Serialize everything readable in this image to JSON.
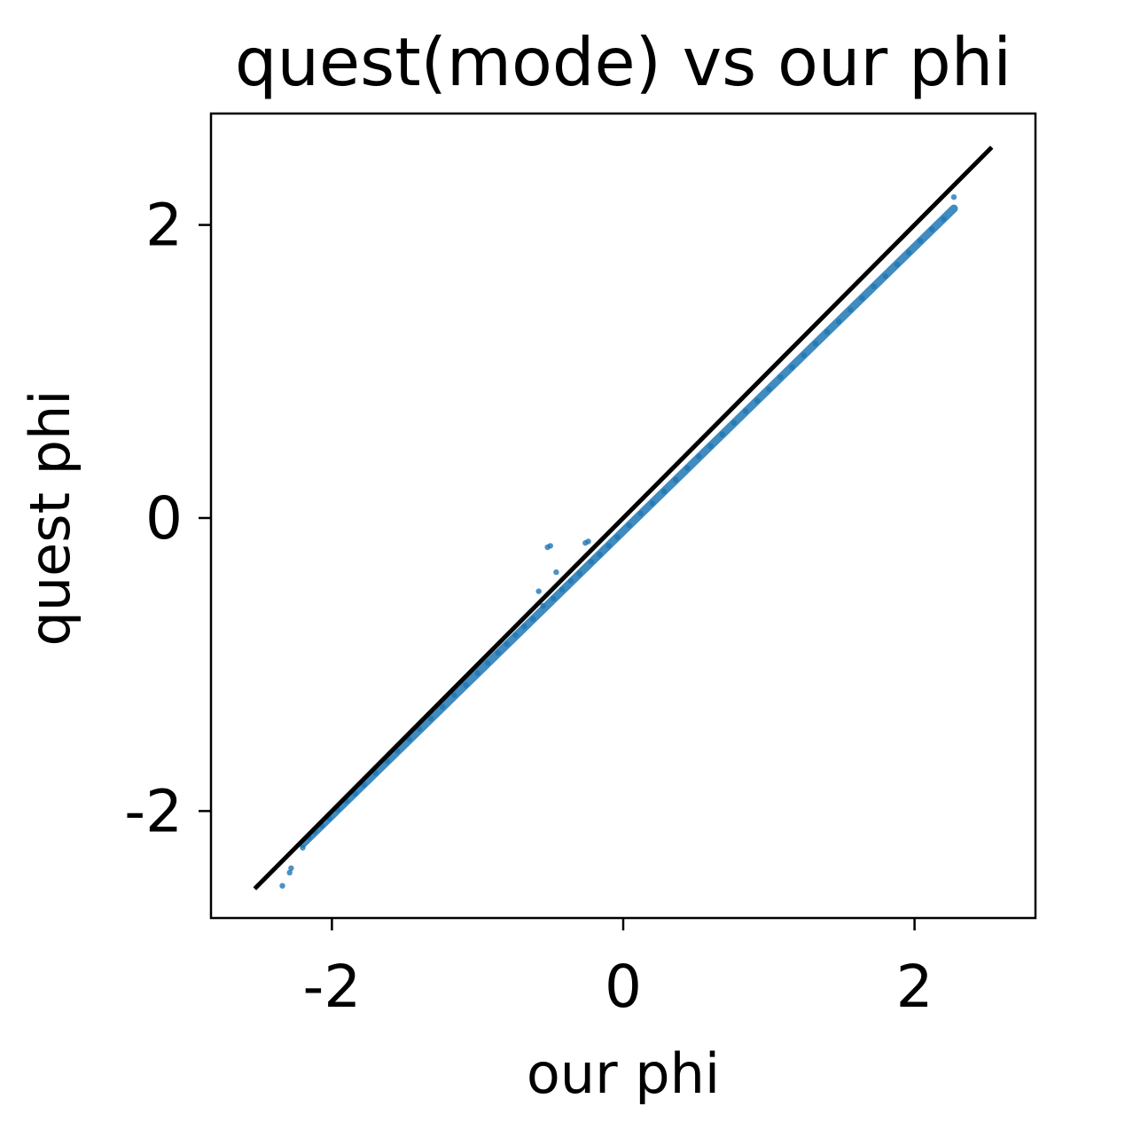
{
  "chart_data": {
    "type": "scatter",
    "title": "quest(mode) vs our phi",
    "xlabel": "our phi",
    "ylabel": "quest phi",
    "xlim": [
      -2.83,
      2.83
    ],
    "ylim": [
      -2.73,
      2.76
    ],
    "xticks": [
      {
        "value": -2,
        "label": "-2"
      },
      {
        "value": 0,
        "label": "0"
      },
      {
        "value": 2,
        "label": "2"
      }
    ],
    "yticks": [
      {
        "value": -2,
        "label": "-2"
      },
      {
        "value": 0,
        "label": "0"
      },
      {
        "value": 2,
        "label": "2"
      }
    ],
    "grid": false,
    "series": [
      {
        "kind": "scatter",
        "color": "#1f77b4",
        "relation": "y ≈ 0.97·x − 0.09",
        "x_range": [
          -2.2,
          2.27
        ],
        "points": [
          [
            -2.34,
            -2.51
          ],
          [
            -2.28,
            -2.39
          ],
          [
            -2.29,
            -2.42
          ],
          [
            -2.2,
            -2.25
          ],
          [
            -2.16,
            -2.18
          ],
          [
            -2.12,
            -2.14
          ],
          [
            -2.07,
            -2.1
          ],
          [
            -2.02,
            -2.05
          ],
          [
            -1.96,
            -1.99
          ],
          [
            -1.9,
            -1.93
          ],
          [
            -1.84,
            -1.88
          ],
          [
            -1.78,
            -1.82
          ],
          [
            -1.7,
            -1.74
          ],
          [
            -1.62,
            -1.66
          ],
          [
            -1.55,
            -1.59
          ],
          [
            -1.47,
            -1.51
          ],
          [
            -1.4,
            -1.44
          ],
          [
            -1.32,
            -1.37
          ],
          [
            -1.24,
            -1.29
          ],
          [
            -1.16,
            -1.21
          ],
          [
            -1.08,
            -1.14
          ],
          [
            -1.0,
            -1.06
          ],
          [
            -0.93,
            -0.99
          ],
          [
            -0.86,
            -0.92
          ],
          [
            -0.8,
            -0.86
          ],
          [
            -0.74,
            -0.8
          ],
          [
            -0.68,
            -0.74
          ],
          [
            -0.62,
            -0.69
          ],
          [
            -0.58,
            -0.5
          ],
          [
            -0.52,
            -0.2
          ],
          [
            -0.5,
            -0.19
          ],
          [
            -0.55,
            -0.6
          ],
          [
            -0.48,
            -0.55
          ],
          [
            -0.46,
            -0.37
          ],
          [
            -0.42,
            -0.49
          ],
          [
            -0.36,
            -0.43
          ],
          [
            -0.3,
            -0.38
          ],
          [
            -0.26,
            -0.17
          ],
          [
            -0.24,
            -0.16
          ],
          [
            -0.22,
            -0.3
          ],
          [
            -0.16,
            -0.25
          ],
          [
            -0.1,
            -0.19
          ],
          [
            -0.04,
            -0.13
          ],
          [
            0.04,
            -0.05
          ],
          [
            0.12,
            0.03
          ],
          [
            0.2,
            0.1
          ],
          [
            0.28,
            0.18
          ],
          [
            0.36,
            0.26
          ],
          [
            0.44,
            0.34
          ],
          [
            0.52,
            0.42
          ],
          [
            0.6,
            0.49
          ],
          [
            0.68,
            0.57
          ],
          [
            0.76,
            0.65
          ],
          [
            0.84,
            0.73
          ],
          [
            0.92,
            0.8
          ],
          [
            1.0,
            0.88
          ],
          [
            1.08,
            0.96
          ],
          [
            1.16,
            1.03
          ],
          [
            1.24,
            1.11
          ],
          [
            1.32,
            1.19
          ],
          [
            1.4,
            1.27
          ],
          [
            1.48,
            1.34
          ],
          [
            1.56,
            1.42
          ],
          [
            1.64,
            1.5
          ],
          [
            1.72,
            1.58
          ],
          [
            1.8,
            1.65
          ],
          [
            1.88,
            1.73
          ],
          [
            1.96,
            1.81
          ],
          [
            2.04,
            1.89
          ],
          [
            2.12,
            1.97
          ],
          [
            2.2,
            2.04
          ],
          [
            2.27,
            2.19
          ]
        ]
      },
      {
        "kind": "line",
        "name": "y = x",
        "color": "#000000",
        "x": [
          -2.53,
          2.53
        ],
        "y": [
          -2.53,
          2.53
        ]
      }
    ]
  }
}
